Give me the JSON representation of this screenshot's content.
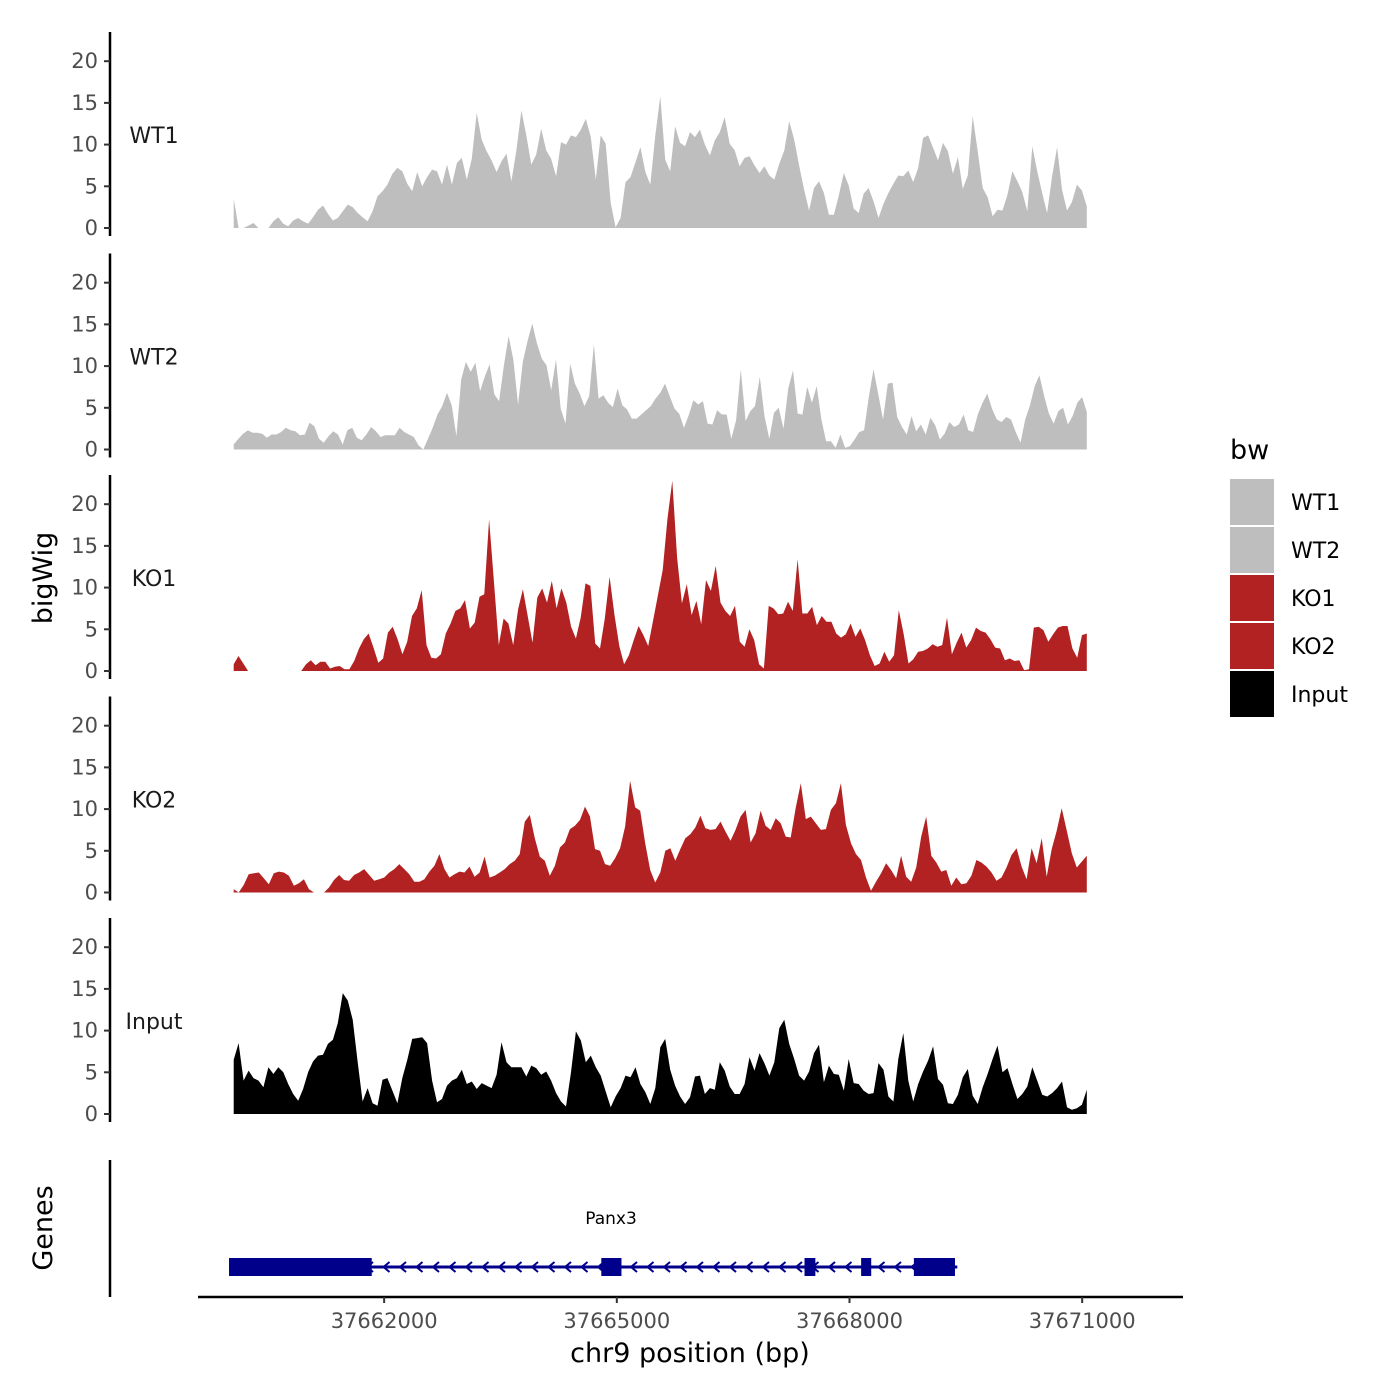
{
  "chart_data": {
    "type": "area",
    "ylabel": "bigWig",
    "xlabel": "chr9 position (bp)",
    "genes_label": "Genes",
    "ylim": [
      0,
      23.5
    ],
    "yticks": [
      0,
      5,
      10,
      15,
      20
    ],
    "xlim": [
      37659600,
      37672300
    ],
    "data_range": [
      37660060,
      37671060
    ],
    "xticks": [
      37662000,
      37665000,
      37668000,
      37671000
    ],
    "xtick_labels": [
      "37662000",
      "37665000",
      "37668000",
      "37671000"
    ],
    "legend": {
      "title": "bw",
      "placement": "right",
      "entries": [
        {
          "label": "WT1",
          "color": "#BEBEBE"
        },
        {
          "label": "WT2",
          "color": "#BEBEBE"
        },
        {
          "label": "KO1",
          "color": "#B22222"
        },
        {
          "label": "KO2",
          "color": "#B22222"
        },
        {
          "label": "Input",
          "color": "#000000"
        }
      ]
    },
    "series": [
      {
        "name": "WT1",
        "color": "#BEBEBE",
        "values": [
          3.5,
          0,
          0,
          0.3,
          0.6,
          0,
          0,
          0,
          0.8,
          1.3,
          0.5,
          0.2,
          0.9,
          1.2,
          0.8,
          0.5,
          1.3,
          2.2,
          2.7,
          1.7,
          0.9,
          1.2,
          2.0,
          2.8,
          2.5,
          1.8,
          1.3,
          0.8,
          2.0,
          3.8,
          4.4,
          5.2,
          6.5,
          7.2,
          6.8,
          5.3,
          4.4,
          6.7,
          5.0,
          6.1,
          7.0,
          6.8,
          5.2,
          7.6,
          5.2,
          7.8,
          8.4,
          5.8,
          8.3,
          13.8,
          10.6,
          9.2,
          8.1,
          6.7,
          8.0,
          8.9,
          5.6,
          9.3,
          14.1,
          11.1,
          7.6,
          8.8,
          11.9,
          9.3,
          8.3,
          6.2,
          10.3,
          10.0,
          11.1,
          10.9,
          11.8,
          13.1,
          10.9,
          5.8,
          11.1,
          10.1,
          3.0,
          0.1,
          1.2,
          5.5,
          6.1,
          7.9,
          9.7,
          6.7,
          5.2,
          11.1,
          15.8,
          8.2,
          6.8,
          12.2,
          10.2,
          9.8,
          11.5,
          10.9,
          11.8,
          10.0,
          8.7,
          10.5,
          11.5,
          13.3,
          10.1,
          9.3,
          7.4,
          8.4,
          8.6,
          7.5,
          6.6,
          7.4,
          6.3,
          5.8,
          7.7,
          9.3,
          12.8,
          10.6,
          7.5,
          4.6,
          2.1,
          4.8,
          5.6,
          4.2,
          1.6,
          1.6,
          3.9,
          6.6,
          5.1,
          2.3,
          1.8,
          4.1,
          4.8,
          3.2,
          1.2,
          2.9,
          4.2,
          5.3,
          6.3,
          6.2,
          6.9,
          5.5,
          7.2,
          10.8,
          11.1,
          9.6,
          8.1,
          10.2,
          9.2,
          6.5,
          8.5,
          4.7,
          6.3,
          13.4,
          9.2,
          4.8,
          3.7,
          1.4,
          2.2,
          2.1,
          4.0,
          6.8,
          5.6,
          4.3,
          2.0,
          9.8,
          6.8,
          4.2,
          1.8,
          6.2,
          9.7,
          4.6,
          2.1,
          3.1,
          5.2,
          4.5,
          2.6
        ]
      },
      {
        "name": "WT2",
        "color": "#BEBEBE",
        "values": [
          0.6,
          1.3,
          1.9,
          2.3,
          2.0,
          2.0,
          1.9,
          1.4,
          1.8,
          1.8,
          2.1,
          2.6,
          2.3,
          2.2,
          1.7,
          1.8,
          3.2,
          2.8,
          1.3,
          0.8,
          1.6,
          2.2,
          1.8,
          0.6,
          2.3,
          2.6,
          1.4,
          1.1,
          1.8,
          2.7,
          2.2,
          1.5,
          1.7,
          1.7,
          1.7,
          2.6,
          2.1,
          1.8,
          1.5,
          0.5,
          0.0,
          1.3,
          2.6,
          4.2,
          5.2,
          6.8,
          5.3,
          1.6,
          8.4,
          10.5,
          9.3,
          10.4,
          7.0,
          8.8,
          10.2,
          6.6,
          5.8,
          10.0,
          13.6,
          10.8,
          5.4,
          10.5,
          13.0,
          15.1,
          12.7,
          10.9,
          10.1,
          7.1,
          10.8,
          4.9,
          3.1,
          10.3,
          7.9,
          6.7,
          5.2,
          6.4,
          12.6,
          6.1,
          6.5,
          5.6,
          5.1,
          7.3,
          5.3,
          4.8,
          3.7,
          3.7,
          4.2,
          4.7,
          5.2,
          6.1,
          6.8,
          7.9,
          6.4,
          4.9,
          4.3,
          2.6,
          4.1,
          5.9,
          5.4,
          5.8,
          3.1,
          3.0,
          4.7,
          4.2,
          4.2,
          1.3,
          3.5,
          9.6,
          3.4,
          4.6,
          5.2,
          8.7,
          4.0,
          1.3,
          4.4,
          5.0,
          2.5,
          7.3,
          9.5,
          4.3,
          4.2,
          7.5,
          5.6,
          7.6,
          3.6,
          1.0,
          1.0,
          0.2,
          1.8,
          0.2,
          0.4,
          1.2,
          2.1,
          2.3,
          6.3,
          9.6,
          6.6,
          3.6,
          7.9,
          8.0,
          3.9,
          2.7,
          1.8,
          4.0,
          2.2,
          3.0,
          1.8,
          3.8,
          2.9,
          1.2,
          1.9,
          3.3,
          2.7,
          3.0,
          4.2,
          2.3,
          2.1,
          4.2,
          5.6,
          6.7,
          4.9,
          3.6,
          3.3,
          3.9,
          3.6,
          2.1,
          0.8,
          3.6,
          5.3,
          7.6,
          8.9,
          6.4,
          4.3,
          3.1,
          4.6,
          5.0,
          3.0,
          4.0,
          5.6,
          6.3,
          4.5
        ]
      },
      {
        "name": "KO1",
        "color": "#B22222",
        "values": [
          0.8,
          1.8,
          0.9,
          0,
          0,
          0,
          0,
          0,
          0,
          0,
          0,
          0,
          0,
          0,
          0,
          0.8,
          1.3,
          0.7,
          1.1,
          1.1,
          0.3,
          0.5,
          0.6,
          0.2,
          0.2,
          1.2,
          2.7,
          3.8,
          4.5,
          2.8,
          1.0,
          1.5,
          4.6,
          5.3,
          3.8,
          2.0,
          3.5,
          6.6,
          7.5,
          9.7,
          3.1,
          1.6,
          1.5,
          2.0,
          4.5,
          5.7,
          7.2,
          7.5,
          8.5,
          5.1,
          5.8,
          8.9,
          9.2,
          18.2,
          10.6,
          3.1,
          6.3,
          5.7,
          3.1,
          7.4,
          9.8,
          6.6,
          3.4,
          8.8,
          9.9,
          8.2,
          10.8,
          7.5,
          9.9,
          8.2,
          5.3,
          3.9,
          6.4,
          10.5,
          10.2,
          3.3,
          2.7,
          6.3,
          11.3,
          6.7,
          3.0,
          0.8,
          1.9,
          3.7,
          5.4,
          4.3,
          3.0,
          6.0,
          9.0,
          12.1,
          18.3,
          22.8,
          13.6,
          8.1,
          10.4,
          6.7,
          8.4,
          5.6,
          10.9,
          9.6,
          12.6,
          8.2,
          7.2,
          6.6,
          7.8,
          3.5,
          2.9,
          5.0,
          3.7,
          0.8,
          0.3,
          7.8,
          7.5,
          6.8,
          6.9,
          8.3,
          7.2,
          13.4,
          6.9,
          6.9,
          7.7,
          5.5,
          6.6,
          5.9,
          5.9,
          4.5,
          4.0,
          4.4,
          5.7,
          4.1,
          5.1,
          3.7,
          1.9,
          0.6,
          0.9,
          2.3,
          1.1,
          1.9,
          7.3,
          4.4,
          0.9,
          1.4,
          2.3,
          2.4,
          2.7,
          3.2,
          2.9,
          3.1,
          6.4,
          2.0,
          3.4,
          4.6,
          2.8,
          3.7,
          5.2,
          4.8,
          4.6,
          3.8,
          2.8,
          2.7,
          1.3,
          1.5,
          1.2,
          1.3,
          0.1,
          0.2,
          5.2,
          5.3,
          4.9,
          3.5,
          4.4,
          5.2,
          5.4,
          5.4,
          2.7,
          1.6,
          4.3,
          4.5
        ]
      },
      {
        "name": "KO2",
        "color": "#B22222",
        "values": [
          0.4,
          0,
          0.9,
          2.2,
          2.3,
          2.4,
          1.7,
          1.0,
          2.3,
          2.5,
          2.4,
          2.0,
          0.8,
          1.1,
          1.6,
          0.4,
          0,
          0,
          0,
          0.6,
          1.5,
          2.1,
          1.5,
          1.4,
          2.1,
          2.4,
          2.8,
          2.1,
          1.4,
          1.6,
          1.8,
          2.4,
          2.8,
          3.4,
          2.8,
          2.2,
          1.3,
          1.3,
          1.6,
          2.5,
          3.2,
          4.6,
          2.8,
          1.8,
          2.2,
          2.5,
          2.4,
          3.1,
          1.9,
          2.4,
          4.3,
          1.8,
          2.0,
          2.4,
          2.8,
          3.4,
          3.8,
          4.6,
          8.5,
          9.3,
          6.5,
          4.3,
          3.8,
          2.0,
          3.2,
          5.4,
          6.0,
          7.6,
          8.0,
          8.7,
          10.3,
          9.1,
          5.2,
          5.0,
          3.4,
          3.2,
          4.1,
          5.3,
          7.9,
          13.4,
          10.2,
          9.8,
          5.9,
          2.7,
          1.2,
          2.4,
          5.0,
          5.3,
          3.8,
          5.2,
          6.5,
          7.0,
          7.8,
          9.2,
          7.7,
          7.5,
          7.6,
          8.5,
          7.3,
          6.2,
          7.5,
          9.1,
          9.9,
          6.0,
          7.1,
          9.8,
          8.0,
          7.5,
          8.9,
          8.3,
          6.7,
          6.6,
          10.2,
          13.1,
          8.8,
          9.1,
          8.3,
          7.5,
          7.6,
          9.9,
          10.7,
          13.1,
          8.1,
          5.9,
          4.6,
          3.9,
          1.8,
          0.2,
          1.3,
          2.3,
          3.5,
          2.7,
          1.7,
          4.4,
          1.9,
          1.3,
          3.0,
          6.7,
          9.1,
          4.4,
          3.6,
          2.5,
          2.7,
          0.8,
          1.8,
          1.0,
          1.1,
          2.0,
          3.9,
          3.6,
          3.1,
          2.4,
          1.4,
          1.8,
          3.0,
          4.5,
          5.3,
          3.1,
          1.6,
          5.3,
          3.5,
          6.5,
          1.9,
          5.2,
          7.4,
          10.1,
          7.4,
          4.7,
          3.0,
          3.7,
          4.4
        ]
      },
      {
        "name": "Input",
        "color": "#000000",
        "values": [
          6.5,
          8.5,
          4.0,
          5.2,
          4.3,
          4.0,
          3.2,
          5.6,
          4.8,
          5.6,
          5.0,
          3.6,
          2.4,
          1.6,
          3.0,
          5.0,
          6.3,
          7.0,
          7.1,
          8.4,
          8.9,
          10.9,
          14.5,
          13.6,
          11.3,
          6.2,
          1.5,
          3.1,
          1.3,
          1.0,
          4.1,
          4.3,
          2.8,
          1.3,
          4.3,
          6.5,
          9.0,
          9.1,
          9.2,
          8.5,
          4.0,
          1.4,
          1.8,
          3.4,
          4.0,
          4.3,
          5.3,
          3.6,
          3.9,
          3.0,
          3.7,
          3.4,
          3.1,
          4.7,
          8.6,
          6.2,
          5.6,
          5.6,
          5.6,
          4.5,
          5.8,
          5.5,
          4.7,
          5.1,
          4.0,
          2.5,
          1.5,
          0.9,
          5.0,
          9.9,
          8.8,
          6.2,
          7.0,
          5.6,
          4.6,
          2.7,
          0.8,
          2.1,
          3.1,
          4.6,
          4.4,
          5.6,
          3.6,
          2.6,
          1.2,
          3.1,
          8.0,
          9.0,
          5.3,
          3.4,
          2.1,
          1.2,
          2.0,
          4.5,
          4.6,
          2.4,
          3.1,
          2.9,
          6.2,
          5.2,
          3.3,
          2.4,
          2.4,
          3.6,
          6.8,
          5.2,
          7.3,
          6.1,
          4.6,
          6.2,
          10.3,
          11.3,
          8.4,
          6.6,
          4.6,
          4.0,
          5.1,
          7.3,
          8.3,
          3.8,
          5.8,
          4.8,
          4.7,
          2.8,
          6.6,
          3.7,
          3.6,
          2.8,
          2.4,
          2.5,
          6.1,
          5.3,
          2.1,
          1.5,
          6.6,
          9.7,
          4.0,
          1.5,
          3.6,
          5.1,
          6.4,
          8.1,
          4.2,
          3.5,
          1.3,
          1.2,
          2.3,
          4.4,
          5.4,
          2.2,
          1.2,
          3.2,
          4.8,
          6.6,
          8.2,
          5.0,
          5.5,
          3.6,
          1.8,
          2.4,
          3.3,
          5.6,
          4.0,
          2.3,
          2.1,
          2.5,
          3.1,
          3.9,
          0.8,
          0.5,
          0.7,
          1.1,
          2.9
        ]
      }
    ],
    "genes": [
      {
        "name": "Panx3",
        "strand": "-",
        "start": 37660000,
        "end": 37669390,
        "exons": [
          [
            37660000,
            37661840
          ],
          [
            37664800,
            37665060
          ],
          [
            37667420,
            37667560
          ],
          [
            37668150,
            37668280
          ],
          [
            37668830,
            37669360
          ]
        ]
      }
    ]
  }
}
